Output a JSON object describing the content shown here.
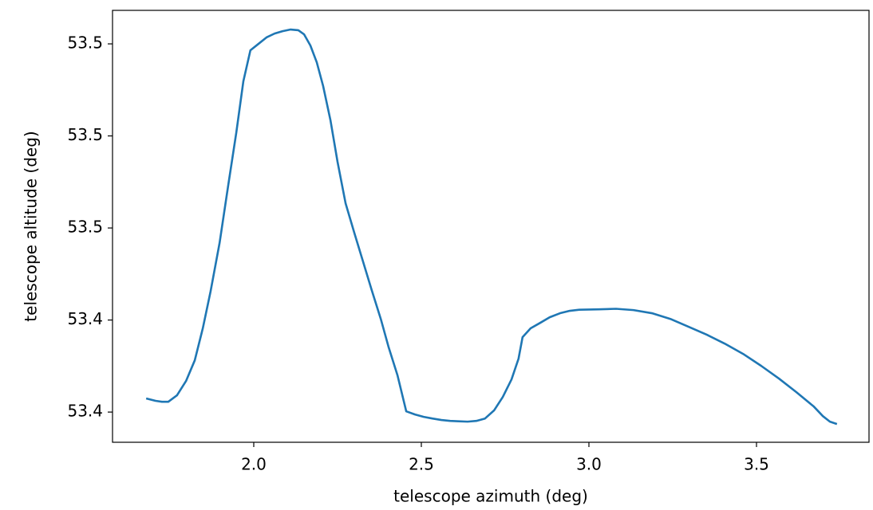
{
  "chart_data": {
    "type": "line",
    "xlabel": "telescope azimuth (deg)",
    "ylabel": "telescope altitude (deg)",
    "color": "#1f77b4",
    "x": [
      1.679,
      1.707,
      1.726,
      1.745,
      1.771,
      1.798,
      1.824,
      1.848,
      1.871,
      1.898,
      1.924,
      1.948,
      1.969,
      1.99,
      2.014,
      2.038,
      2.062,
      2.086,
      2.11,
      2.133,
      2.15,
      2.169,
      2.188,
      2.207,
      2.229,
      2.25,
      2.274,
      2.3,
      2.326,
      2.352,
      2.379,
      2.402,
      2.429,
      2.455,
      2.481,
      2.507,
      2.533,
      2.56,
      2.586,
      2.612,
      2.638,
      2.664,
      2.69,
      2.717,
      2.743,
      2.769,
      2.79,
      2.802,
      2.826,
      2.855,
      2.883,
      2.914,
      2.943,
      2.971,
      3.029,
      3.081,
      3.133,
      3.188,
      3.243,
      3.298,
      3.352,
      3.405,
      3.46,
      3.514,
      3.567,
      3.619,
      3.671,
      3.698,
      3.719,
      3.74
    ],
    "values": [
      53.44074,
      53.44061,
      53.44056,
      53.44056,
      53.44091,
      53.44169,
      53.44281,
      53.44455,
      53.44654,
      53.44918,
      53.45234,
      53.45519,
      53.45797,
      53.45965,
      53.46,
      53.46035,
      53.46056,
      53.46069,
      53.46078,
      53.46074,
      53.46052,
      53.45991,
      53.459,
      53.45771,
      53.45584,
      53.45359,
      53.45134,
      53.44974,
      53.44818,
      53.44662,
      53.44506,
      53.44355,
      53.44199,
      53.44004,
      53.43987,
      53.43974,
      53.43965,
      53.43957,
      53.43952,
      53.4395,
      53.43948,
      53.43952,
      53.43965,
      53.44009,
      53.44082,
      53.44177,
      53.4429,
      53.44407,
      53.44455,
      53.44485,
      53.44515,
      53.44537,
      53.4455,
      53.44556,
      53.44558,
      53.44561,
      53.44554,
      53.44537,
      53.44506,
      53.44463,
      53.4442,
      53.44372,
      53.44316,
      53.44251,
      53.44182,
      53.44108,
      53.4403,
      53.43978,
      53.43948,
      53.43935
    ],
    "xlim": [
      1.5786,
      3.8357
    ],
    "ylim": [
      53.43836,
      53.46182
    ],
    "xticks": [
      {
        "value": 2,
        "label": "2.0"
      },
      2.5,
      {
        "value": 3,
        "label": "3.0"
      },
      3.5
    ],
    "yticks": [
      {
        "value": 53.44,
        "label": "53.4"
      },
      {
        "value": 53.445,
        "label": "53.4"
      },
      {
        "value": 53.45,
        "label": "53.5"
      },
      {
        "value": 53.455,
        "label": "53.5"
      },
      {
        "value": 53.46,
        "label": "53.5"
      }
    ]
  }
}
